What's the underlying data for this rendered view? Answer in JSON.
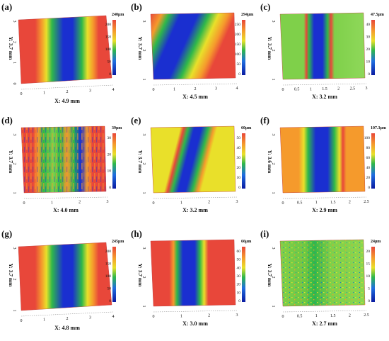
{
  "panels": [
    {
      "id": "a",
      "letter": "(a)",
      "max_label": "240μm",
      "cb_ticks": [
        "200",
        "150",
        "100",
        "50",
        "0"
      ],
      "x_label": "X: 4.9 mm",
      "y_label": "Y: 3.7 mm",
      "x_ticks": [
        "0",
        "1",
        "2",
        "3",
        "4"
      ],
      "y_ticks": [
        "0",
        "1",
        "2",
        "3"
      ],
      "scheme": "wide_groove",
      "skew": "tilted"
    },
    {
      "id": "b",
      "letter": "(b)",
      "max_label": "294μm",
      "cb_ticks": [
        "250",
        "200",
        "150",
        "100",
        "50",
        "0"
      ],
      "x_label": "X: 4.5 mm",
      "y_label": "Y: 3.7 mm",
      "x_ticks": [
        "0",
        "1",
        "2",
        "3",
        "4"
      ],
      "y_ticks": [
        "1",
        "2",
        "3"
      ],
      "scheme": "diagonal_groove",
      "skew": "flat"
    },
    {
      "id": "c",
      "letter": "(c)",
      "max_label": "47.5μm",
      "cb_ticks": [
        "40",
        "30",
        "20",
        "10",
        "0"
      ],
      "x_label": "X: 3.2 mm",
      "y_label": "Y: 3.7 mm",
      "x_ticks": [
        "0",
        "0.5",
        "1",
        "1.5",
        "2",
        "2.5",
        "3"
      ],
      "y_ticks": [
        "1",
        "2",
        "3"
      ],
      "scheme": "narrow_groove_green",
      "skew": "flat"
    },
    {
      "id": "d",
      "letter": "(d)",
      "max_label": "39μm",
      "cb_ticks": [
        "30",
        "20",
        "10",
        "0"
      ],
      "x_label": "X: 4.0 mm",
      "y_label": "Y: 3.7 mm",
      "x_ticks": [
        "0",
        "1",
        "2",
        "3"
      ],
      "y_ticks": [
        "1",
        "2",
        "3"
      ],
      "scheme": "rough_groove",
      "skew": "flat"
    },
    {
      "id": "e",
      "letter": "(e)",
      "max_label": "60μm",
      "cb_ticks": [
        "50",
        "40",
        "30",
        "20",
        "10",
        "0"
      ],
      "x_label": "X: 3.2 mm",
      "y_label": "Y: 3.7 mm",
      "x_ticks": [
        "0",
        "1",
        "2",
        "3"
      ],
      "y_ticks": [
        "1",
        "2",
        "3"
      ],
      "scheme": "yellow_groove",
      "skew": "flat"
    },
    {
      "id": "f",
      "letter": "(f)",
      "max_label": "107.3μm",
      "cb_ticks": [
        "100",
        "80",
        "60",
        "40",
        "20",
        "0"
      ],
      "x_label": "X: 2.9 mm",
      "y_label": "Y: 3.6 mm",
      "x_ticks": [
        "0",
        "0.5",
        "1",
        "1.5",
        "2",
        "2.5"
      ],
      "y_ticks": [
        "1",
        "2",
        "3"
      ],
      "scheme": "orange_groove",
      "skew": "flat"
    },
    {
      "id": "g",
      "letter": "(g)",
      "max_label": "245μm",
      "cb_ticks": [
        "200",
        "150",
        "100",
        "50",
        "0"
      ],
      "x_label": "X: 4.8 mm",
      "y_label": "Y: 3.7 mm",
      "x_ticks": [
        "0",
        "1",
        "2",
        "3",
        "4"
      ],
      "y_ticks": [
        "1",
        "2",
        "3"
      ],
      "scheme": "wide_groove",
      "skew": "tilted"
    },
    {
      "id": "h",
      "letter": "(h)",
      "max_label": "66μm",
      "cb_ticks": [
        "60",
        "50",
        "40",
        "30",
        "20",
        "10",
        "0"
      ],
      "x_label": "X: 3.0 mm",
      "y_label": "Y: 3.7 mm",
      "x_ticks": [
        "0",
        "1",
        "2",
        "3"
      ],
      "y_ticks": [
        "1",
        "2",
        "3"
      ],
      "scheme": "red_narrow_groove",
      "skew": "flat"
    },
    {
      "id": "i",
      "letter": "(i)",
      "max_label": "24μm",
      "cb_ticks": [
        "20",
        "15",
        "10",
        "5",
        "0"
      ],
      "x_label": "X: 2.7 mm",
      "y_label": "Y: 3.7 mm",
      "x_ticks": [
        "0",
        "0.5",
        "1",
        "1.5",
        "2",
        "2.5"
      ],
      "y_ticks": [
        "1",
        "2",
        "3"
      ],
      "scheme": "noisy_green",
      "skew": "flat"
    }
  ],
  "colors": {
    "red": "#e8473a",
    "orange": "#f59a2c",
    "yellow": "#e9e02a",
    "green": "#2fb84a",
    "lightgreen": "#7fd04a",
    "blue": "#1a2fd0",
    "darkblue": "#0a1aa0"
  }
}
